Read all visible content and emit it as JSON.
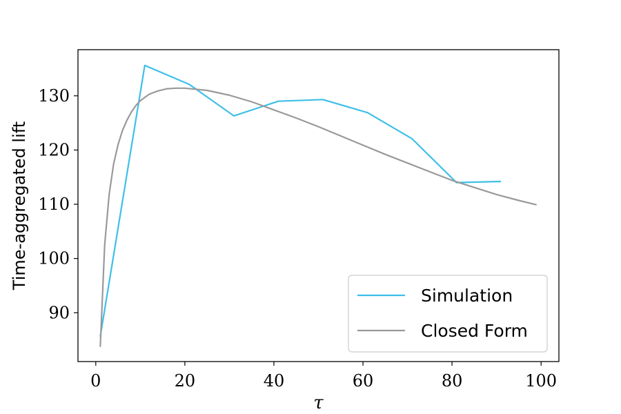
{
  "chart_data": {
    "type": "line",
    "xlabel": "τ",
    "ylabel": "Time-aggregated lift",
    "xlim": [
      -4,
      104
    ],
    "ylim": [
      81,
      138.5
    ],
    "xticks": [
      0,
      20,
      40,
      60,
      80,
      100
    ],
    "yticks": [
      90,
      100,
      110,
      120,
      130
    ],
    "grid": false,
    "legend_position": "lower-right",
    "series": [
      {
        "name": "Simulation",
        "color": "#3dbfe8",
        "x": [
          1,
          11,
          21,
          31,
          41,
          51,
          61,
          71,
          81,
          91
        ],
        "y": [
          85.6,
          135.6,
          132.1,
          126.3,
          129.0,
          129.3,
          126.9,
          122.1,
          114.0,
          114.2
        ]
      },
      {
        "name": "Closed Form",
        "color": "#999999",
        "x": [
          1,
          2,
          3,
          4,
          5,
          6,
          7,
          8,
          9,
          10,
          12,
          14,
          16,
          18,
          20,
          25,
          30,
          35,
          40,
          45,
          50,
          55,
          60,
          65,
          70,
          75,
          80,
          85,
          90,
          95,
          99
        ],
        "y": [
          83.7,
          102.5,
          111.8,
          117.4,
          121.0,
          123.6,
          125.5,
          127.0,
          128.2,
          129.1,
          130.3,
          130.9,
          131.3,
          131.4,
          131.4,
          131.0,
          130.1,
          128.9,
          127.4,
          125.9,
          124.3,
          122.6,
          120.9,
          119.2,
          117.6,
          116.0,
          114.4,
          113.1,
          111.8,
          110.7,
          109.9
        ]
      }
    ]
  }
}
